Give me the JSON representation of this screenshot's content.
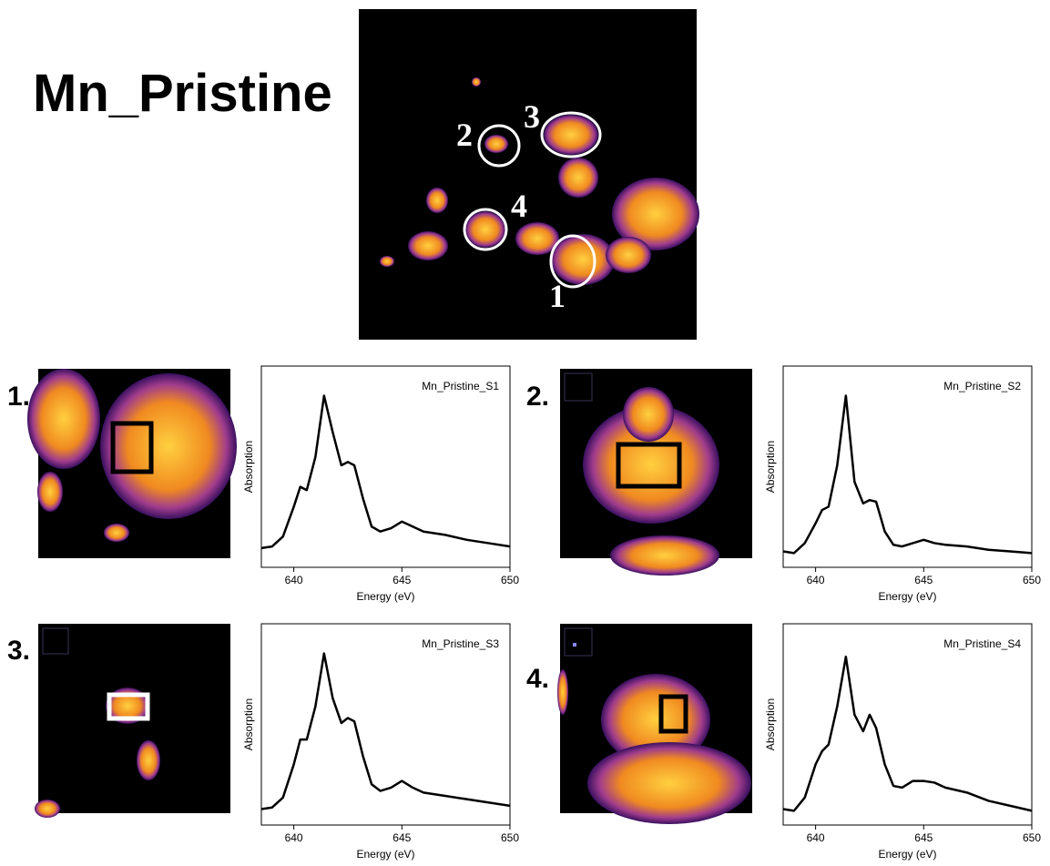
{
  "title": "Mn_Pristine",
  "overview": {
    "labels": [
      "1",
      "2",
      "3",
      "4"
    ]
  },
  "panel_labels": [
    "1.",
    "2.",
    "3.",
    "4."
  ],
  "chart_data": [
    {
      "type": "line",
      "title": "Mn_Pristine_S1",
      "xlabel": "Energy (eV)",
      "ylabel": "Absorption",
      "color": "#000000",
      "x": [
        638.5,
        639,
        639.5,
        640,
        640.3,
        640.6,
        641,
        641.4,
        641.8,
        642.2,
        642.5,
        642.8,
        643.2,
        643.6,
        644,
        644.5,
        645,
        645.5,
        646,
        647,
        648,
        649,
        650
      ],
      "values": [
        0.05,
        0.06,
        0.12,
        0.3,
        0.42,
        0.4,
        0.6,
        0.97,
        0.75,
        0.55,
        0.57,
        0.55,
        0.35,
        0.18,
        0.15,
        0.17,
        0.21,
        0.18,
        0.15,
        0.13,
        0.1,
        0.08,
        0.06
      ],
      "xlim": [
        638.5,
        650
      ],
      "ylim": [
        0,
        1.05
      ],
      "xticks": [
        640,
        645,
        650
      ]
    },
    {
      "type": "line",
      "title": "Mn_Pristine_S2",
      "xlabel": "Energy (eV)",
      "ylabel": "Absorption",
      "color": "#000000",
      "x": [
        638.5,
        639,
        639.5,
        640,
        640.3,
        640.6,
        641,
        641.4,
        641.8,
        642.2,
        642.5,
        642.8,
        643.2,
        643.6,
        644,
        644.5,
        645,
        645.5,
        646,
        647,
        648,
        649,
        650
      ],
      "values": [
        0.03,
        0.02,
        0.08,
        0.2,
        0.28,
        0.3,
        0.55,
        0.97,
        0.45,
        0.32,
        0.34,
        0.33,
        0.15,
        0.07,
        0.06,
        0.08,
        0.1,
        0.08,
        0.07,
        0.06,
        0.04,
        0.03,
        0.02
      ],
      "xlim": [
        638.5,
        650
      ],
      "ylim": [
        0,
        1.05
      ],
      "xticks": [
        640,
        645,
        650
      ]
    },
    {
      "type": "line",
      "title": "Mn_Pristine_S3",
      "xlabel": "Energy (eV)",
      "ylabel": "Absorption",
      "color": "#000000",
      "x": [
        638.5,
        639,
        639.5,
        640,
        640.3,
        640.6,
        641,
        641.4,
        641.8,
        642.2,
        642.5,
        642.8,
        643.2,
        643.6,
        644,
        644.5,
        645,
        645.5,
        646,
        647,
        648,
        649,
        650
      ],
      "values": [
        0.03,
        0.04,
        0.1,
        0.3,
        0.45,
        0.45,
        0.65,
        0.97,
        0.7,
        0.55,
        0.58,
        0.56,
        0.35,
        0.18,
        0.14,
        0.16,
        0.2,
        0.16,
        0.13,
        0.11,
        0.09,
        0.07,
        0.05
      ],
      "xlim": [
        638.5,
        650
      ],
      "ylim": [
        0,
        1.05
      ],
      "xticks": [
        640,
        645,
        650
      ]
    },
    {
      "type": "line",
      "title": "Mn_Pristine_S4",
      "xlabel": "Energy (eV)",
      "ylabel": "Absorption",
      "color": "#000000",
      "x": [
        638.5,
        639,
        639.5,
        640,
        640.3,
        640.6,
        641,
        641.4,
        641.8,
        642.2,
        642.5,
        642.8,
        643.2,
        643.6,
        644,
        644.5,
        645,
        645.5,
        646,
        647,
        648,
        649,
        650
      ],
      "values": [
        0.03,
        0.02,
        0.1,
        0.3,
        0.38,
        0.42,
        0.65,
        0.95,
        0.6,
        0.5,
        0.6,
        0.52,
        0.3,
        0.17,
        0.16,
        0.2,
        0.2,
        0.19,
        0.16,
        0.13,
        0.08,
        0.05,
        0.02
      ],
      "xlim": [
        638.5,
        650
      ],
      "ylim": [
        0,
        1.05
      ],
      "xticks": [
        640,
        645,
        650
      ]
    }
  ]
}
